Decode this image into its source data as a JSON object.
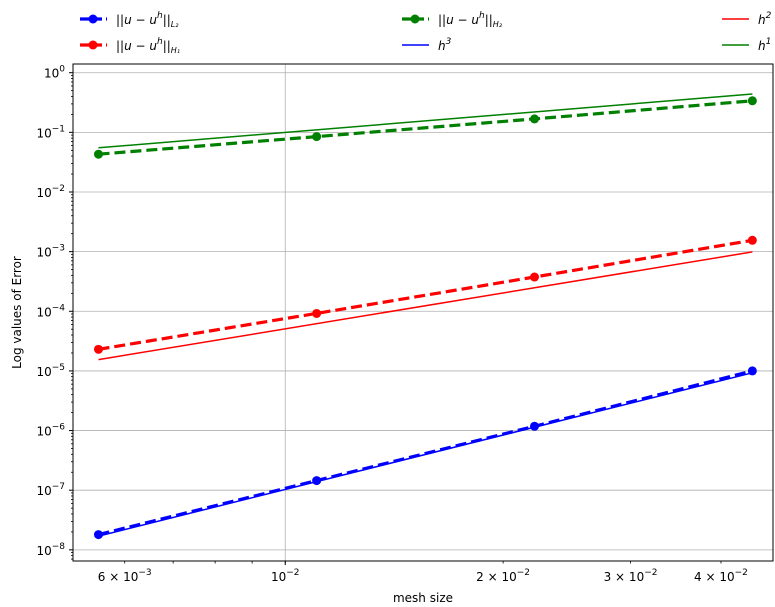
{
  "chart_data": {
    "type": "line",
    "title": "",
    "xlabel": "mesh size",
    "ylabel": "Log values of Error",
    "x_scale": "log",
    "y_scale": "log",
    "xlim": [
      0.00509,
      0.0472
    ],
    "ylim": [
      6.5e-09,
      1.4
    ],
    "grid": true,
    "x_ticks": [
      {
        "value": 0.006,
        "base": "6 × 10",
        "exp": "−3"
      },
      {
        "value": 0.01,
        "base": "10",
        "exp": "−2"
      },
      {
        "value": 0.02,
        "base": "2 × 10",
        "exp": "−2"
      },
      {
        "value": 0.03,
        "base": "3 × 10",
        "exp": "−2"
      },
      {
        "value": 0.04,
        "base": "4 × 10",
        "exp": "−2"
      }
    ],
    "y_ticks": [
      {
        "value": 1.0,
        "base": "10",
        "exp": "0"
      },
      {
        "value": 0.1,
        "base": "10",
        "exp": "−1"
      },
      {
        "value": 0.01,
        "base": "10",
        "exp": "−2"
      },
      {
        "value": 0.001,
        "base": "10",
        "exp": "−3"
      },
      {
        "value": 0.0001,
        "base": "10",
        "exp": "−4"
      },
      {
        "value": 1e-05,
        "base": "10",
        "exp": "−5"
      },
      {
        "value": 1e-06,
        "base": "10",
        "exp": "−6"
      },
      {
        "value": 1e-07,
        "base": "10",
        "exp": "−7"
      },
      {
        "value": 1e-08,
        "base": "10",
        "exp": "−8"
      }
    ],
    "legend_placement": "top",
    "series": [
      {
        "name": "||u − u^h||_{L2}",
        "color": "#0000ff",
        "style": "dashed-markers",
        "x": [
          0.00552,
          0.01105,
          0.0221,
          0.0442
        ],
        "values": [
          1.8e-08,
          1.45e-07,
          1.18e-06,
          1e-05
        ]
      },
      {
        "name": "||u − u^h||_{H1}",
        "color": "#ff0000",
        "style": "dashed-markers",
        "x": [
          0.00552,
          0.01105,
          0.0221,
          0.0442
        ],
        "values": [
          2.3e-05,
          9.2e-05,
          0.000375,
          0.00155
        ]
      },
      {
        "name": "||u − u^h||_{H2}",
        "color": "#008000",
        "style": "dashed-markers",
        "x": [
          0.00552,
          0.01105,
          0.0221,
          0.0442
        ],
        "values": [
          0.043,
          0.085,
          0.168,
          0.338
        ]
      },
      {
        "name": "h^3",
        "color": "#0000ff",
        "style": "solid",
        "x": [
          0.00552,
          0.0442
        ],
        "values": [
          1.7e-08,
          9.3e-06
        ]
      },
      {
        "name": "h^2",
        "color": "#ff0000",
        "style": "solid",
        "x": [
          0.00552,
          0.0442
        ],
        "values": [
          1.55e-05,
          0.00099
        ]
      },
      {
        "name": "h^1",
        "color": "#008000",
        "style": "solid",
        "x": [
          0.00552,
          0.0442
        ],
        "values": [
          0.055,
          0.44
        ]
      }
    ],
    "legend": [
      {
        "label": "||u − u",
        "sup": "h",
        "post": "||",
        "sub": "L₂",
        "color": "#0000ff",
        "style": "dashed-markers"
      },
      {
        "label": "||u − u",
        "sup": "h",
        "post": "||",
        "sub": "H₁",
        "color": "#ff0000",
        "style": "dashed-markers"
      },
      {
        "label": "||u − u",
        "sup": "h",
        "post": "||",
        "sub": "H₂",
        "color": "#008000",
        "style": "dashed-markers"
      },
      {
        "label": "h",
        "sup": "3",
        "post": "",
        "sub": "",
        "color": "#0000ff",
        "style": "solid"
      },
      {
        "label": "h",
        "sup": "2",
        "post": "",
        "sub": "",
        "color": "#ff0000",
        "style": "solid"
      },
      {
        "label": "h",
        "sup": "1",
        "post": "",
        "sub": "",
        "color": "#008000",
        "style": "solid"
      }
    ]
  }
}
